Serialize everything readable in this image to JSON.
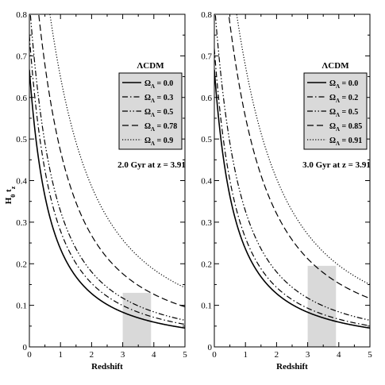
{
  "chart_data": [
    {
      "type": "line",
      "panel": "left",
      "xlabel": "Redshift",
      "ylabel": "H0 tz",
      "xlim": [
        0,
        5
      ],
      "ylim": [
        0,
        0.8
      ],
      "xticks": [
        0,
        1,
        2,
        3,
        4,
        5
      ],
      "yticks": [
        0,
        0.1,
        0.2,
        0.3,
        0.4,
        0.5,
        0.6,
        0.7,
        0.8
      ],
      "legend_title": "ΛCDM",
      "legend_symbol": "Ω",
      "legend_subscript": "Λ",
      "legend_placement": "top-right",
      "annotation": "2.0 Gyr at z = 3.91",
      "highlight_region": {
        "x": [
          3.0,
          3.91
        ],
        "y": [
          0,
          0.13
        ],
        "color": "#d9d9d9"
      },
      "series": [
        {
          "name": "= 0.0",
          "style": "solid",
          "omega_lambda": 0.0
        },
        {
          "name": "= 0.3",
          "style": "dashdot",
          "omega_lambda": 0.3
        },
        {
          "name": "= 0.5",
          "style": "dashdotdot",
          "omega_lambda": 0.5
        },
        {
          "name": "= 0.78",
          "style": "dashed",
          "omega_lambda": 0.78
        },
        {
          "name": "= 0.9",
          "style": "dotted",
          "omega_lambda": 0.9
        }
      ]
    },
    {
      "type": "line",
      "panel": "right",
      "xlabel": "Redshift",
      "ylabel": "",
      "xlim": [
        0,
        5
      ],
      "ylim": [
        0,
        0.8
      ],
      "xticks": [
        0,
        1,
        2,
        3,
        4,
        5
      ],
      "yticks": [
        0,
        0.1,
        0.2,
        0.3,
        0.4,
        0.5,
        0.6,
        0.7,
        0.8
      ],
      "legend_title": "ΛCDM",
      "legend_symbol": "Ω",
      "legend_subscript": "Λ",
      "legend_placement": "top-right",
      "annotation": "3.0 Gyr at z = 3.91",
      "highlight_region": {
        "x": [
          3.0,
          3.91
        ],
        "y": [
          0,
          0.195
        ],
        "color": "#d9d9d9"
      },
      "series": [
        {
          "name": "= 0.0",
          "style": "solid",
          "omega_lambda": 0.0
        },
        {
          "name": "= 0.2",
          "style": "dashdot",
          "omega_lambda": 0.2
        },
        {
          "name": "= 0.5",
          "style": "dashdotdot",
          "omega_lambda": 0.5
        },
        {
          "name": "= 0.85",
          "style": "dashed",
          "omega_lambda": 0.85
        },
        {
          "name": "= 0.91",
          "style": "dotted",
          "omega_lambda": 0.91
        }
      ]
    }
  ]
}
